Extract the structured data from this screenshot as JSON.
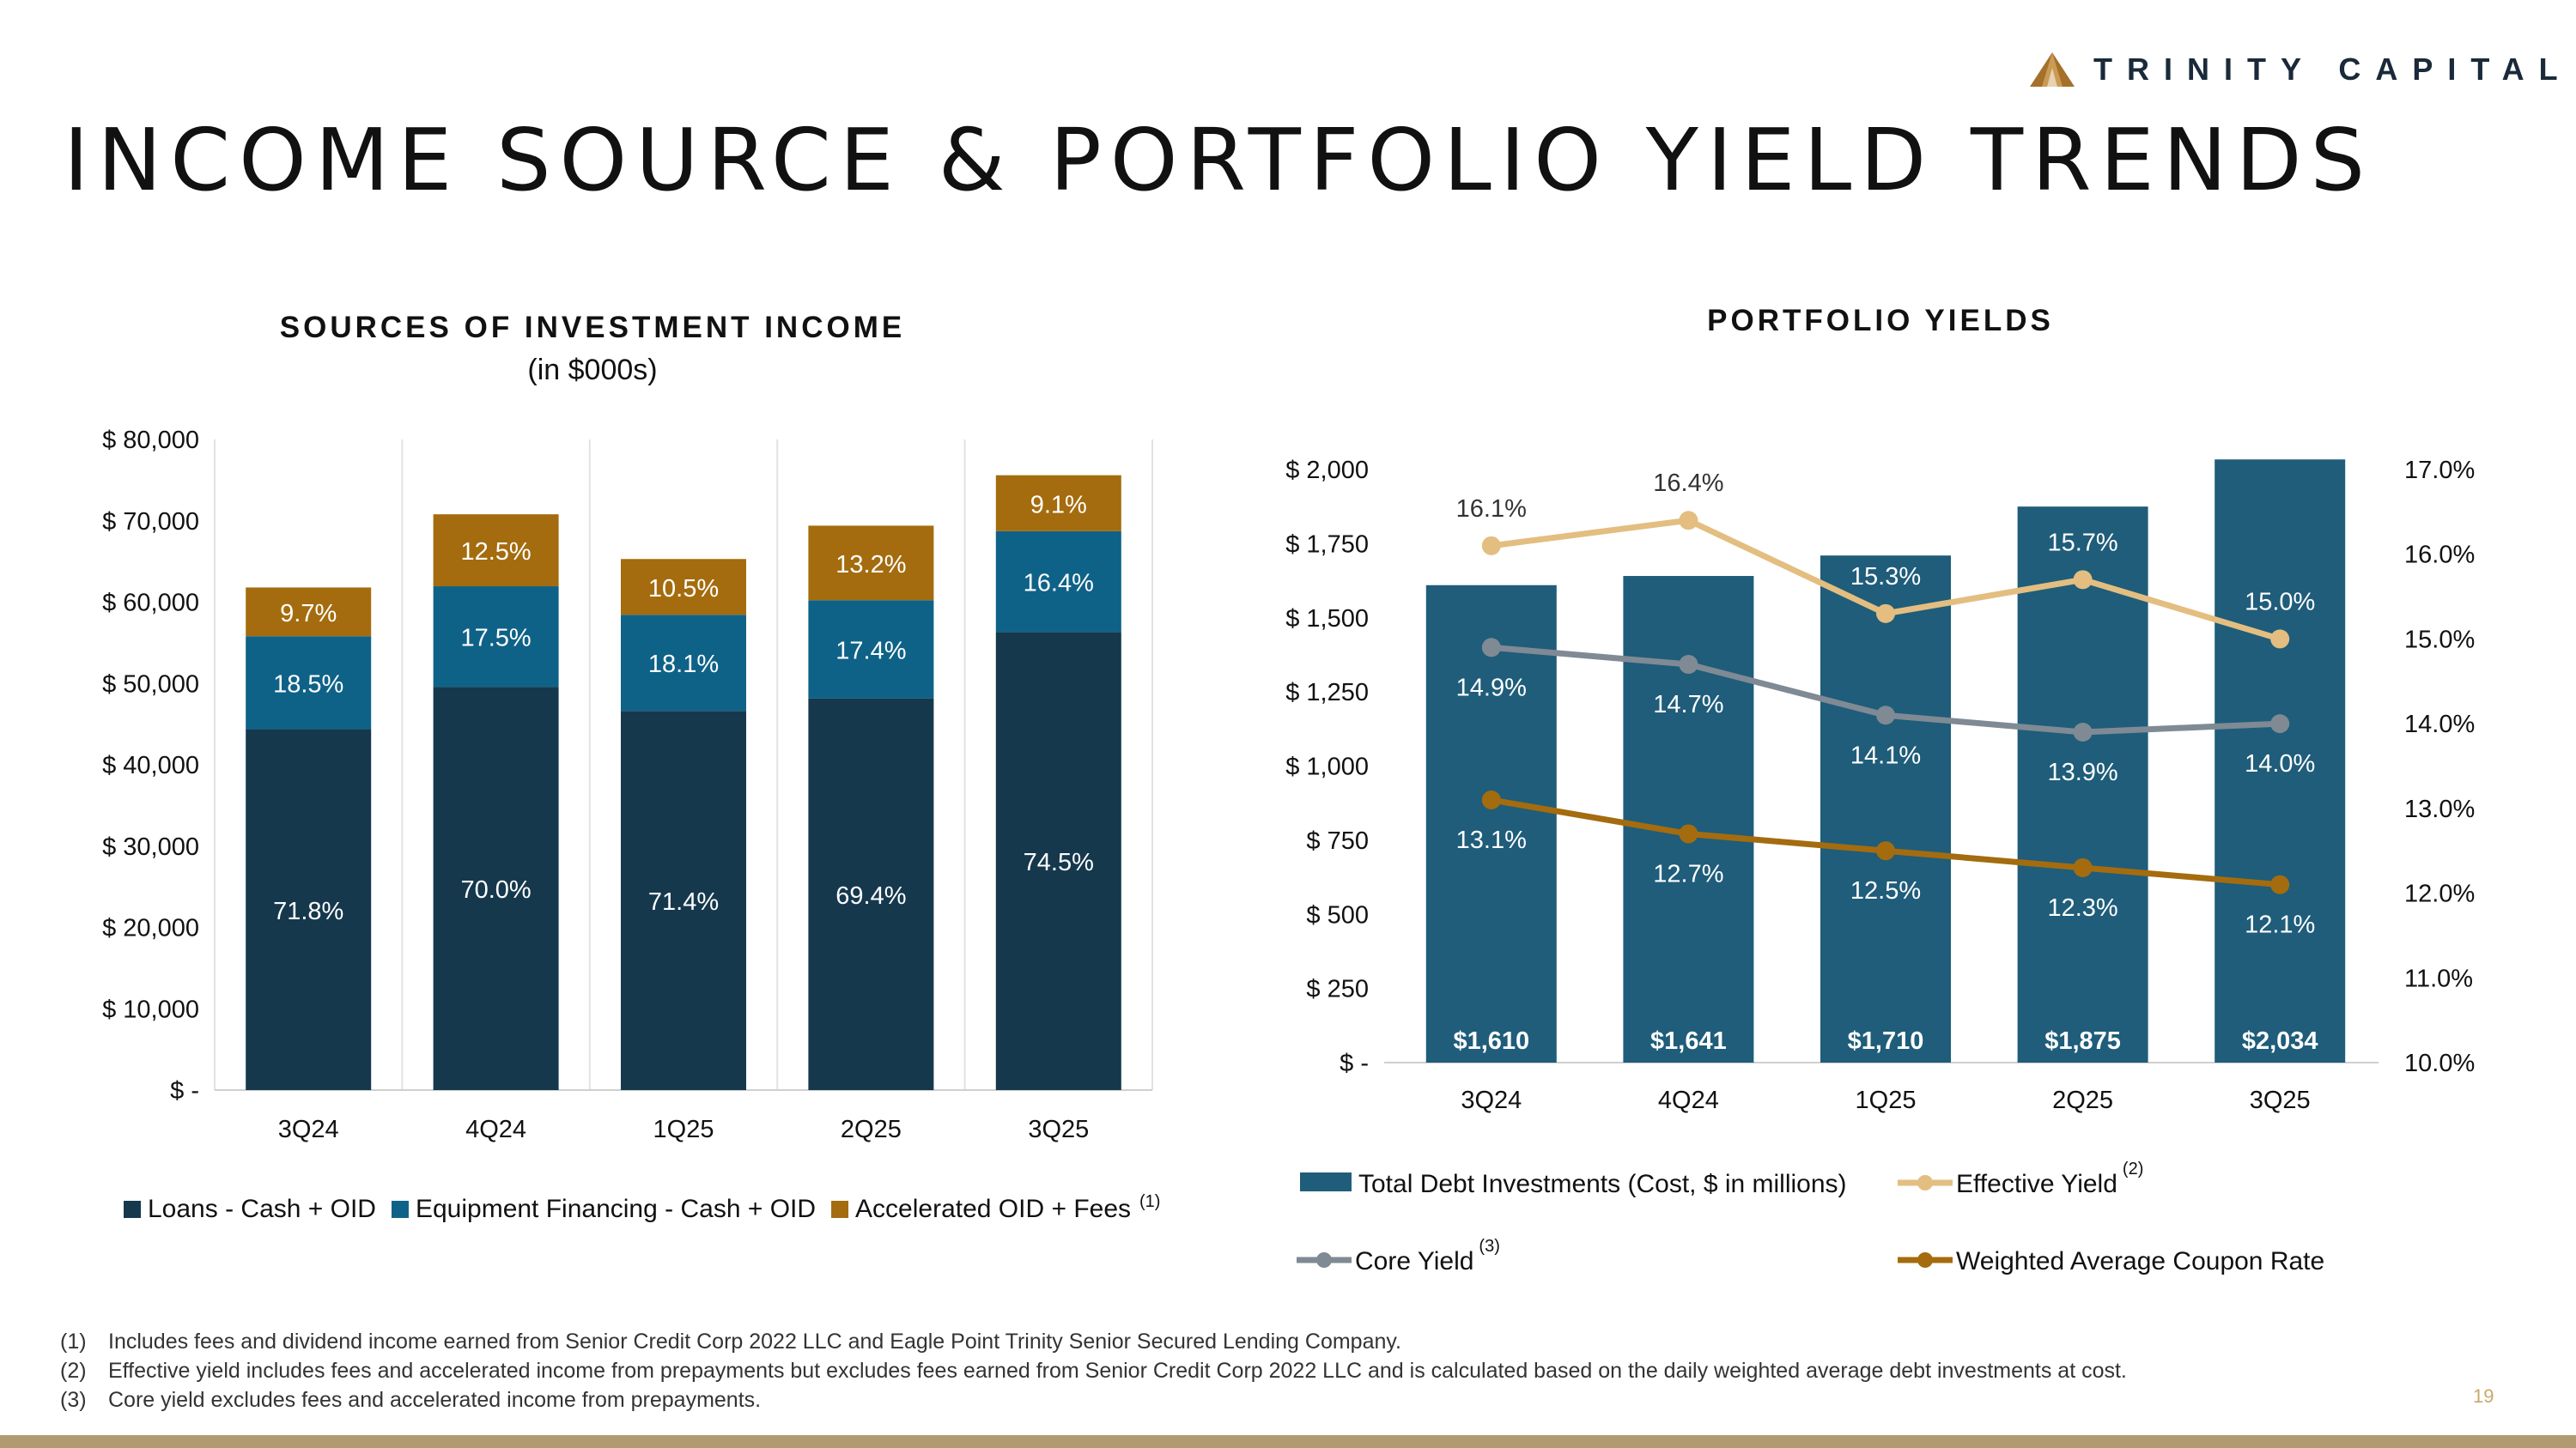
{
  "brand": {
    "name": "TRINITY CAPITAL",
    "logo": "mountain-triangle-icon"
  },
  "page_title": "INCOME SOURCE & PORTFOLIO YIELD TRENDS",
  "page_number": "19",
  "colors": {
    "loans": "#15384d",
    "equipment": "#0f6287",
    "accelerated": "#a46c0e",
    "debt_bar": "#1f5d7a",
    "effective": "#e3be80",
    "core": "#7f8a94",
    "coupon": "#a46c0e"
  },
  "left_chart_header": {
    "title": "SOURCES OF INVESTMENT INCOME",
    "subtitle": "(in $000s)"
  },
  "right_chart_header": {
    "title": "PORTFOLIO YIELDS"
  },
  "chart_data": [
    {
      "type": "bar",
      "stacked": true,
      "title": "SOURCES OF INVESTMENT INCOME",
      "subtitle": "(in $000s)",
      "categories": [
        "3Q24",
        "4Q24",
        "1Q25",
        "2Q25",
        "3Q25"
      ],
      "ylim": [
        0,
        80000
      ],
      "yticks": [
        "$ -",
        "$ 10,000",
        "$ 20,000",
        "$ 30,000",
        "$ 40,000",
        "$ 50,000",
        "$ 60,000",
        "$ 70,000",
        "$ 80,000"
      ],
      "totals": [
        61800,
        70800,
        65300,
        69400,
        75600
      ],
      "series": [
        {
          "name": "Loans - Cash + OID",
          "key": "loans",
          "shares": [
            71.8,
            70.0,
            71.4,
            69.4,
            74.5
          ],
          "labels": [
            "71.8%",
            "70.0%",
            "71.4%",
            "69.4%",
            "74.5%"
          ]
        },
        {
          "name": "Equipment Financing - Cash + OID",
          "key": "equipment",
          "shares": [
            18.5,
            17.5,
            18.1,
            17.4,
            16.4
          ],
          "labels": [
            "18.5%",
            "17.5%",
            "18.1%",
            "17.4%",
            "16.4%"
          ]
        },
        {
          "name": "Accelerated OID + Fees",
          "key": "accelerated",
          "shares": [
            9.7,
            12.5,
            10.5,
            13.2,
            9.1
          ],
          "labels": [
            "9.7%",
            "12.5%",
            "10.5%",
            "13.2%",
            "9.1%"
          ],
          "legend_sup": "(1)"
        }
      ],
      "legend": "bottom"
    },
    {
      "type": "bar",
      "combo": "bar-line",
      "title": "PORTFOLIO YIELDS",
      "categories": [
        "3Q24",
        "4Q24",
        "1Q25",
        "2Q25",
        "3Q25"
      ],
      "ylim_left": [
        0,
        2000
      ],
      "yticks_left": [
        "$ -",
        "$ 250",
        "$ 500",
        "$ 750",
        "$ 1,000",
        "$ 1,250",
        "$ 1,500",
        "$ 1,750",
        "$ 2,000"
      ],
      "ylim_right": [
        10.0,
        17.0
      ],
      "yticks_right": [
        "10.0%",
        "11.0%",
        "12.0%",
        "13.0%",
        "14.0%",
        "15.0%",
        "16.0%",
        "17.0%"
      ],
      "bars": {
        "name": "Total Debt Investments (Cost, $ in millions)",
        "values": [
          1610,
          1641,
          1710,
          1875,
          2034
        ],
        "labels": [
          "$1,610",
          "$1,641",
          "$1,710",
          "$1,875",
          "$2,034"
        ]
      },
      "lines": [
        {
          "name": "Effective Yield",
          "key": "effective",
          "legend_sup": "(2)",
          "values": [
            16.1,
            16.4,
            15.3,
            15.7,
            15.0
          ],
          "labels": [
            "16.1%",
            "16.4%",
            "15.3%",
            "15.7%",
            "15.0%"
          ]
        },
        {
          "name": "Core Yield",
          "key": "core",
          "legend_sup": "(3)",
          "values": [
            14.9,
            14.7,
            14.1,
            13.9,
            14.0
          ],
          "labels": [
            "14.9%",
            "14.7%",
            "14.1%",
            "13.9%",
            "14.0%"
          ]
        },
        {
          "name": "Weighted Average Coupon Rate",
          "key": "coupon",
          "values": [
            13.1,
            12.7,
            12.5,
            12.3,
            12.1
          ],
          "labels": [
            "13.1%",
            "12.7%",
            "12.5%",
            "12.3%",
            "12.1%"
          ]
        }
      ],
      "legend": "bottom"
    }
  ],
  "footnotes": [
    {
      "num": "(1)",
      "text": "Includes fees and dividend income earned from Senior Credit Corp 2022 LLC and Eagle Point Trinity Senior Secured Lending Company."
    },
    {
      "num": "(2)",
      "text": "Effective yield includes fees and accelerated income from prepayments but excludes fees earned from Senior Credit Corp 2022 LLC and is calculated based on the daily weighted average debt investments at cost."
    },
    {
      "num": "(3)",
      "text": "Core yield excludes fees and accelerated income from prepayments."
    }
  ]
}
